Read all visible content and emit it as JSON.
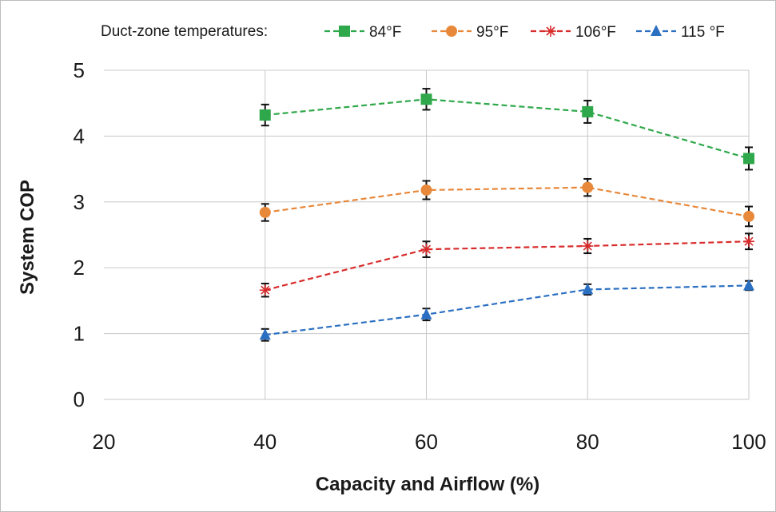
{
  "chart_data": {
    "type": "line",
    "title": "",
    "legend_title": "Duct-zone temperatures:",
    "legend_position": "top",
    "xlabel": "Capacity and Airflow (%)",
    "ylabel": "System COP",
    "xlim": [
      20,
      100
    ],
    "ylim": [
      0,
      5
    ],
    "x_ticks": [
      20,
      40,
      60,
      80,
      100
    ],
    "y_ticks": [
      0,
      1,
      2,
      3,
      4,
      5
    ],
    "grid": true,
    "x": [
      40,
      60,
      80,
      100
    ],
    "series": [
      {
        "name": "84°F",
        "values": [
          4.32,
          4.56,
          4.37,
          3.66
        ],
        "errors": [
          0.16,
          0.16,
          0.17,
          0.17
        ],
        "color": "#2ea84a",
        "marker": "square"
      },
      {
        "name": "95°F",
        "values": [
          2.84,
          3.18,
          3.22,
          2.78
        ],
        "errors": [
          0.13,
          0.14,
          0.13,
          0.15
        ],
        "color": "#e8883a",
        "marker": "circle"
      },
      {
        "name": "106°F",
        "values": [
          1.66,
          2.28,
          2.33,
          2.4
        ],
        "errors": [
          0.1,
          0.12,
          0.11,
          0.12
        ],
        "color": "#d92b2b",
        "marker": "star"
      },
      {
        "name": "115 °F",
        "values": [
          0.98,
          1.29,
          1.67,
          1.73
        ],
        "errors": [
          0.09,
          0.09,
          0.08,
          0.07
        ],
        "color": "#2a6fc2",
        "marker": "triangle"
      }
    ]
  }
}
